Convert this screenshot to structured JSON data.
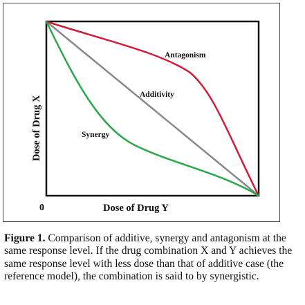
{
  "diagram": {
    "x_axis_label": "Dose of Drug Y",
    "y_axis_label": "Dose of Drug X",
    "origin_label": "0",
    "curves": [
      {
        "name": "Antagonism",
        "color": "#cc1f3a"
      },
      {
        "name": "Additivity",
        "color": "#888888"
      },
      {
        "name": "Synergy",
        "color": "#2ca84a"
      }
    ]
  },
  "caption": {
    "label": "Figure 1.",
    "text": " Comparison of additive, synergy and antagonism at the same response level. If the drug combination X and Y achieves the same response level with less dose than that of additive case (the reference model), the combination is said to by synergistic."
  }
}
